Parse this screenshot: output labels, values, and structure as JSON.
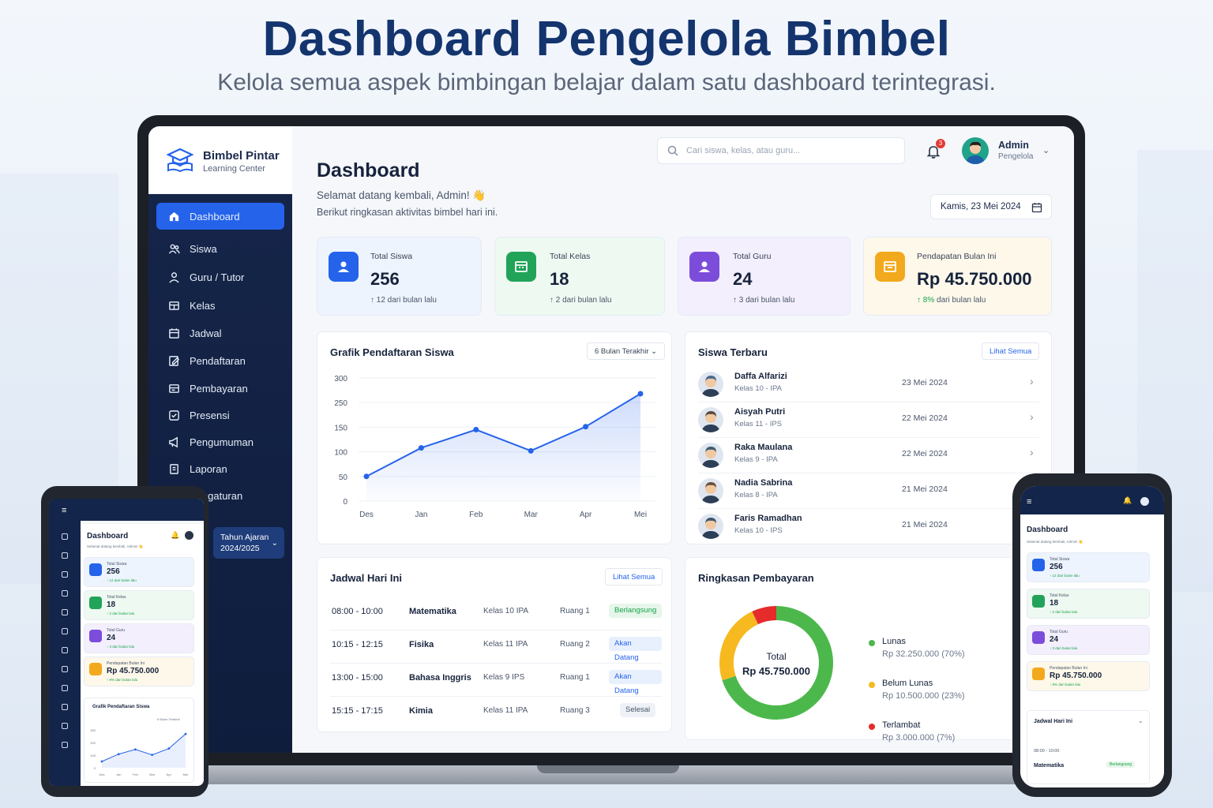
{
  "hero": {
    "title": "Dashboard Pengelola Bimbel",
    "subtitle": "Kelola semua aspek bimbingan belajar dalam satu dashboard terintegrasi."
  },
  "brand": {
    "name": "Bimbel Pintar",
    "tagline": "Learning Center"
  },
  "sidebar": {
    "items": [
      {
        "label": "Dashboard",
        "icon": "home-icon"
      },
      {
        "label": "Siswa",
        "icon": "users-icon"
      },
      {
        "label": "Guru / Tutor",
        "icon": "user-icon"
      },
      {
        "label": "Kelas",
        "icon": "classroom-icon"
      },
      {
        "label": "Jadwal",
        "icon": "calendar-icon"
      },
      {
        "label": "Pendaftaran",
        "icon": "edit-icon"
      },
      {
        "label": "Pembayaran",
        "icon": "wallet-icon"
      },
      {
        "label": "Presensi",
        "icon": "check-icon"
      },
      {
        "label": "Pengumuman",
        "icon": "megaphone-icon"
      },
      {
        "label": "Laporan",
        "icon": "report-icon"
      },
      {
        "label": "Pengaturan",
        "icon": "gear-icon"
      }
    ],
    "year_label": "Tahun Ajaran",
    "year_value": "2024/2025"
  },
  "topbar": {
    "search_placeholder": "Cari siswa, kelas, atau guru...",
    "notif_count": "3",
    "admin_name": "Admin",
    "admin_role": "Pengelola"
  },
  "header": {
    "title": "Dashboard",
    "welcome": "Selamat datang kembali, Admin! 👋",
    "welcome_sub": "Berikut ringkasan aktivitas bimbel hari ini.",
    "date": "Kamis, 23 Mei 2024"
  },
  "stats": [
    {
      "label": "Total Siswa",
      "value": "256",
      "delta": "↑ 12 dari bulan lalu",
      "color": "#2563eb"
    },
    {
      "label": "Total Kelas",
      "value": "18",
      "delta": "↑ 2 dari bulan lalu",
      "color": "#22a35a"
    },
    {
      "label": "Total Guru",
      "value": "24",
      "delta": "↑ 3 dari bulan lalu",
      "color": "#7c4ddb"
    },
    {
      "label": "Pendapatan Bulan Ini",
      "value": "Rp 45.750.000",
      "delta_up": "↑ 8%",
      "delta": "dari bulan lalu",
      "color": "#f2a91d"
    }
  ],
  "chart_card": {
    "title": "Grafik Pendaftaran Siswa",
    "filter": "6 Bulan Terakhir"
  },
  "chart_data": {
    "type": "area",
    "categories": [
      "Des",
      "Jan",
      "Feb",
      "Mar",
      "Apr",
      "Mei"
    ],
    "y_ticks": [
      "300",
      "250",
      "150",
      "100",
      "50",
      "0"
    ],
    "values": [
      50,
      108,
      145,
      102,
      152,
      268
    ],
    "color": "#2563eb"
  },
  "recent_students": {
    "title": "Siswa Terbaru",
    "see_all": "Lihat Semua",
    "rows": [
      {
        "name": "Daffa Alfarizi",
        "class": "Kelas 10 - IPA",
        "date": "23 Mei 2024"
      },
      {
        "name": "Aisyah Putri",
        "class": "Kelas 11 - IPS",
        "date": "22 Mei 2024"
      },
      {
        "name": "Raka Maulana",
        "class": "Kelas 9 - IPA",
        "date": "22 Mei 2024"
      },
      {
        "name": "Nadia Sabrina",
        "class": "Kelas 8 - IPA",
        "date": "21 Mei 2024"
      },
      {
        "name": "Faris Ramadhan",
        "class": "Kelas 10 - IPS",
        "date": "21 Mei 2024"
      }
    ]
  },
  "schedule": {
    "title": "Jadwal Hari Ini",
    "see_all": "Lihat Semua",
    "rows": [
      {
        "time": "08:00 - 10:00",
        "subject": "Matematika",
        "class": "Kelas 10 IPA",
        "room": "Ruang 1",
        "status": "Berlangsung"
      },
      {
        "time": "10:15 - 12:15",
        "subject": "Fisika",
        "class": "Kelas 11 IPA",
        "room": "Ruang 2",
        "status": "Akan Datang"
      },
      {
        "time": "13:00 - 15:00",
        "subject": "Bahasa Inggris",
        "class": "Kelas 9 IPS",
        "room": "Ruang 1",
        "status": "Akan Datang"
      },
      {
        "time": "15:15 - 17:15",
        "subject": "Kimia",
        "class": "Kelas 11 IPA",
        "room": "Ruang 3",
        "status": "Selesai"
      }
    ]
  },
  "payments": {
    "title": "Ringkasan Pembayaran",
    "center_label": "Total",
    "center_value": "Rp 45.750.000",
    "segments": [
      {
        "name": "Lunas",
        "value": "Rp 32.250.000 (70%)",
        "percent": 70,
        "color": "#4cb84c"
      },
      {
        "name": "Belum Lunas",
        "value": "Rp 10.500.000 (23%)",
        "percent": 23,
        "color": "#f6b91f"
      },
      {
        "name": "Terlambat",
        "value": "Rp 3.000.000 (7%)",
        "percent": 7,
        "color": "#e52b2b"
      }
    ]
  },
  "tablet": {
    "title": "Dashboard",
    "welcome": "Selamat datang kembali, Admin! 👋",
    "cards": [
      {
        "label": "Total Siswa",
        "value": "256",
        "delta": "↑ 12 dari bulan lalu"
      },
      {
        "label": "Total Kelas",
        "value": "18",
        "delta": "↑ 2 dari bulan lalu"
      },
      {
        "label": "Total Guru",
        "value": "24",
        "delta": "↑ 3 dari bulan lalu"
      },
      {
        "label": "Pendapatan Bulan Ini",
        "value": "Rp 45.750.000",
        "delta": "↑ 8% dari bulan lalu"
      }
    ],
    "chart_title": "Grafik Pendaftaran Siswa",
    "chart_filter": "6 Bulan Terakhir",
    "y_ticks": [
      "300",
      "200",
      "100",
      "0"
    ],
    "x_ticks": [
      "Des",
      "Jan",
      "Feb",
      "Mar",
      "Apr",
      "Mei"
    ]
  },
  "phone": {
    "title": "Dashboard",
    "welcome": "Selamat datang kembali, Admin! 👋",
    "cards": [
      {
        "label": "Total Siswa",
        "value": "256",
        "delta": "↑ 12 dari bulan lalu"
      },
      {
        "label": "Total Kelas",
        "value": "18",
        "delta": "↑ 2 dari bulan lalu"
      },
      {
        "label": "Total Guru",
        "value": "24",
        "delta": "↑ 3 dari bulan lalu"
      },
      {
        "label": "Pendapatan Bulan Ini",
        "value": "Rp 45.750.000",
        "delta": "↑ 8% dari bulan lalu"
      }
    ],
    "schedule_title": "Jadwal Hari Ini",
    "schedule_time": "08:00 - 10:00",
    "schedule_subject": "Matematika",
    "schedule_status": "Berlangsung"
  }
}
